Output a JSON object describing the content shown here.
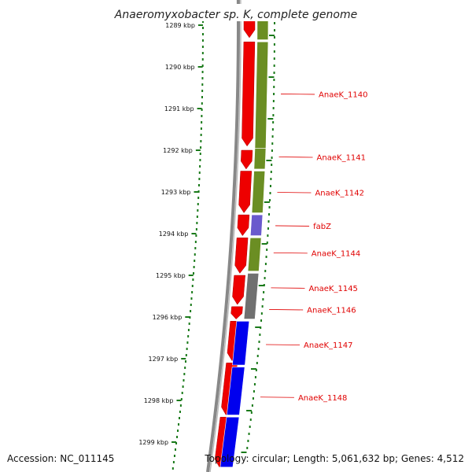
{
  "title": "Anaeromyxobacter sp. K, complete genome",
  "footer": {
    "accession": "Accession: NC_011145",
    "topology": "Topology: circular; Length: 5,061,632 bp; Genes: 4,512"
  },
  "colors": {
    "forward_cds": "#ee0000",
    "reverse_cds": "#0000ee",
    "cog_green": "#6b8e23",
    "cog_blue": "#6a5acd",
    "cog_gray": "#707070",
    "backbone": "#888888",
    "ticks": "#1a7a1a",
    "labels": "#e00000"
  },
  "ruler": {
    "unit": "kbp",
    "labels": [
      "1289 kbp",
      "1290 kbp",
      "1291 kbp",
      "1292 kbp",
      "1293 kbp",
      "1294 kbp",
      "1295 kbp",
      "1296 kbp",
      "1297 kbp",
      "1298 kbp",
      "1299 kbp"
    ],
    "values": [
      1289,
      1290,
      1291,
      1292,
      1293,
      1294,
      1295,
      1296,
      1297,
      1298,
      1299
    ]
  },
  "forward_genes": [
    {
      "start": 1288.75,
      "end": 1289.3
    },
    {
      "start": 1289.4,
      "end": 1291.9
    },
    {
      "start": 1292.0,
      "end": 1292.45
    },
    {
      "start": 1292.5,
      "end": 1293.5
    },
    {
      "start": 1293.55,
      "end": 1294.05
    },
    {
      "start": 1294.1,
      "end": 1294.95
    },
    {
      "start": 1295.0,
      "end": 1295.7
    },
    {
      "start": 1295.75,
      "end": 1296.05
    },
    {
      "start": 1296.1,
      "end": 1297.05
    },
    {
      "start": 1297.1,
      "end": 1298.35
    },
    {
      "start": 1298.4,
      "end": 1299.6
    }
  ],
  "cog_track": [
    {
      "start": 1288.75,
      "end": 1289.35,
      "color": "green"
    },
    {
      "start": 1289.4,
      "end": 1291.95,
      "color": "green"
    },
    {
      "start": 1291.95,
      "end": 1292.45,
      "color": "green"
    },
    {
      "start": 1292.5,
      "end": 1293.5,
      "color": "green"
    },
    {
      "start": 1293.55,
      "end": 1294.05,
      "color": "blue"
    },
    {
      "start": 1294.1,
      "end": 1294.9,
      "color": "green"
    },
    {
      "start": 1294.95,
      "end": 1296.05,
      "color": "gray"
    }
  ],
  "reverse_genes": [
    {
      "start": 1296.1,
      "end": 1297.15
    },
    {
      "start": 1297.2,
      "end": 1298.35
    },
    {
      "start": 1298.4,
      "end": 1299.6
    }
  ],
  "gene_labels": [
    {
      "label": "AnaeK_1140",
      "pos": 1290.65
    },
    {
      "label": "AnaeK_1141",
      "pos": 1292.16
    },
    {
      "label": "AnaeK_1142",
      "pos": 1293.01
    },
    {
      "label": "fabZ",
      "pos": 1293.81
    },
    {
      "label": "AnaeK_1144",
      "pos": 1294.46
    },
    {
      "label": "AnaeK_1145",
      "pos": 1295.3
    },
    {
      "label": "AnaeK_1146",
      "pos": 1295.82
    },
    {
      "label": "AnaeK_1147",
      "pos": 1296.66
    },
    {
      "label": "AnaeK_1148",
      "pos": 1297.92
    }
  ]
}
